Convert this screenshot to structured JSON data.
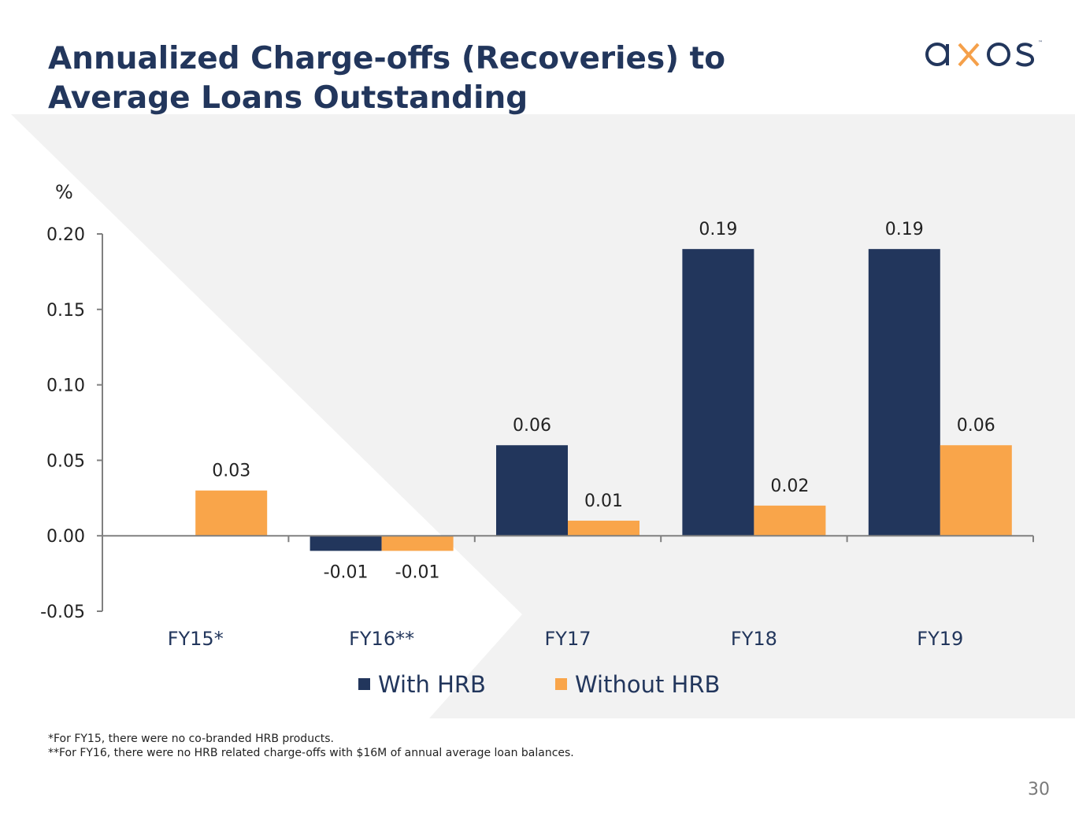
{
  "slide": {
    "title_line1": "Annualized Charge-offs (Recoveries) to",
    "title_line2": "Average Loans Outstanding",
    "logo_text": "axos",
    "footnote1": "*For FY15, there were no co-branded HRB products.",
    "footnote2": "**For FY16, there were no HRB related charge-offs with $16M of annual average loan balances.",
    "page_number": "30"
  },
  "colors": {
    "navy": "#22365c",
    "orange": "#f9a54a",
    "background_shape": "#f2f2f2"
  },
  "chart_data": {
    "type": "bar",
    "title": "",
    "ylabel": "%",
    "xlabel": "",
    "categories": [
      "FY15*",
      "FY16**",
      "FY17",
      "FY18",
      "FY19"
    ],
    "series": [
      {
        "name": "With HRB",
        "color": "#22365c",
        "values": [
          null,
          -0.01,
          0.06,
          0.19,
          0.19
        ],
        "labels": [
          "",
          "-0.01",
          "0.06",
          "0.19",
          "0.19"
        ]
      },
      {
        "name": "Without HRB",
        "color": "#f9a54a",
        "values": [
          0.03,
          -0.01,
          0.01,
          0.02,
          0.06
        ],
        "labels": [
          "0.03",
          "-0.01",
          "0.01",
          "0.02",
          "0.06"
        ]
      }
    ],
    "ylim": [
      -0.05,
      0.2
    ],
    "yticks": [
      -0.05,
      0.0,
      0.05,
      0.1,
      0.15,
      0.2
    ],
    "ytick_labels": [
      "-0.05",
      "0.00",
      "0.05",
      "0.10",
      "0.15",
      "0.20"
    ],
    "legend_position": "bottom",
    "grid": false
  }
}
